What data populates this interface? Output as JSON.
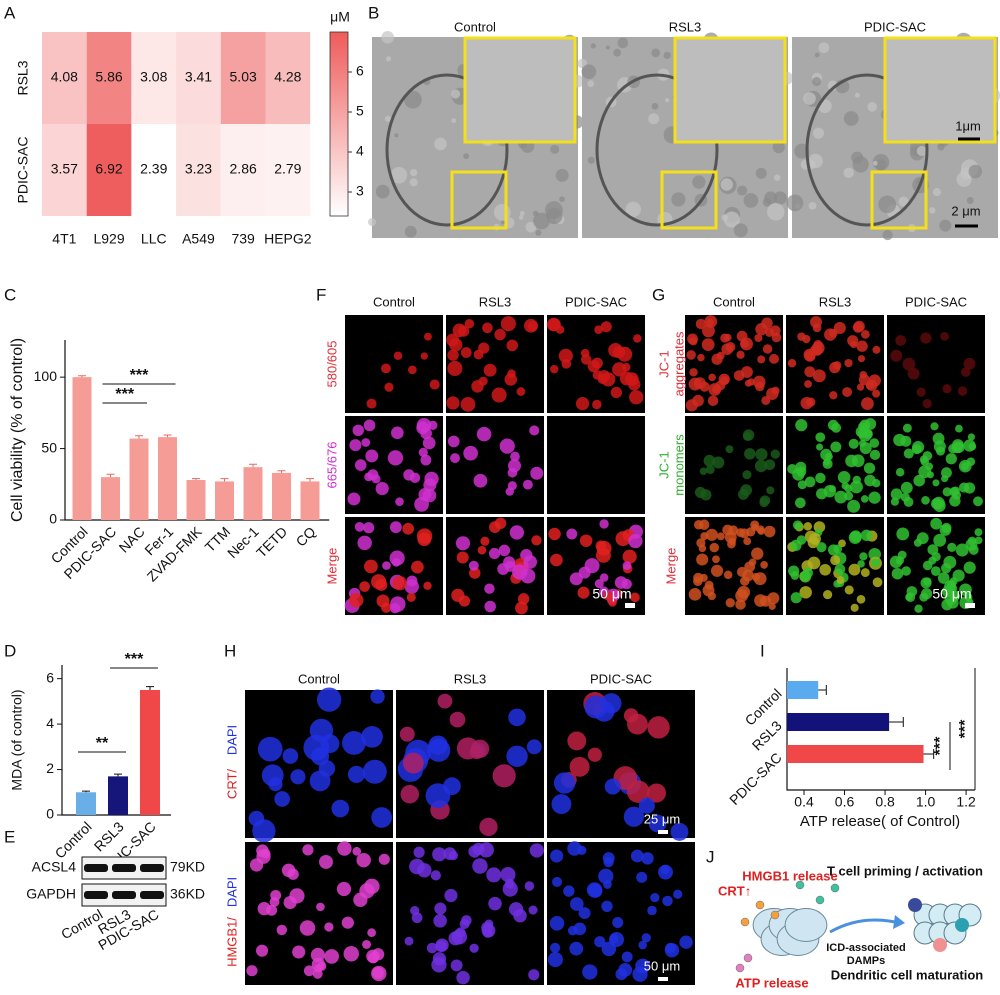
{
  "panel_labels": [
    "A",
    "B",
    "C",
    "F",
    "G",
    "D",
    "H",
    "I",
    "E",
    "J"
  ],
  "chart_data": [
    {
      "type": "heatmap",
      "x_categories": [
        "4T1",
        "L929",
        "LLC",
        "A549",
        "739",
        "HEPG2"
      ],
      "y_categories": [
        "RSL3",
        "PDIC-SAC"
      ],
      "values": [
        [
          4.08,
          5.86,
          3.08,
          3.41,
          5.03,
          4.28
        ],
        [
          3.57,
          6.92,
          2.39,
          3.23,
          2.86,
          2.79
        ]
      ],
      "colorbar_label": "μM",
      "zlim": [
        2.4,
        7
      ],
      "zticks": [
        3,
        4,
        5,
        6
      ],
      "colors": [
        "#ffffff",
        "#ef5b5b"
      ]
    },
    {
      "type": "bar",
      "ylabel": "Cell viability (% of control)",
      "categories": [
        "Control",
        "PDIC-SAC",
        "NAC",
        "Fer-1",
        "ZVAD-FMK",
        "TTM",
        "Nec-1",
        "TETD",
        "CQ"
      ],
      "values": [
        100,
        30,
        57,
        58,
        28,
        27,
        37,
        33,
        27
      ],
      "errors": [
        1,
        2,
        2,
        1.5,
        1,
        2,
        2,
        1.5,
        2
      ],
      "color": "#f59c97",
      "ylim": [
        0,
        126
      ],
      "yticks": [
        0,
        50,
        100
      ],
      "annotations": [
        "***",
        "***"
      ]
    },
    {
      "type": "bar",
      "ylabel": "MDA (of control)",
      "categories": [
        "Control",
        "RSL3",
        "PDIC-SAC"
      ],
      "values": [
        1.0,
        1.7,
        5.5
      ],
      "errors": [
        0.05,
        0.1,
        0.15
      ],
      "colors": [
        "#6aaee8",
        "#16167a",
        "#f04848"
      ],
      "ylim": [
        0,
        6.6
      ],
      "yticks": [
        0,
        2,
        4,
        6
      ],
      "annotations": [
        "**",
        "***"
      ]
    },
    {
      "type": "hbar",
      "xlabel": "ATP release( of Control)",
      "categories": [
        "Control",
        "RSL3",
        "PDIC-SAC"
      ],
      "values": [
        0.47,
        0.82,
        0.99
      ],
      "errors": [
        0.04,
        0.07,
        0.05
      ],
      "colors": [
        "#5aaaf0",
        "#12127a",
        "#f04848"
      ],
      "xlim": [
        0.316,
        1.244
      ],
      "xticks": [
        0.4,
        0.6,
        0.8,
        {
          "value": 1,
          "label": "1.0"
        },
        1.2
      ],
      "annotations": [
        "***",
        "***"
      ]
    }
  ],
  "panel_b": {
    "columns": [
      "Control",
      "RSL3",
      "PDIC-SAC"
    ],
    "scale_bars": [
      "1μm",
      "2 μm"
    ]
  },
  "panel_f": {
    "columns": [
      "Control",
      "RSL3",
      "PDIC-SAC"
    ],
    "rows": [
      "580/605",
      "665/676",
      "Merge"
    ],
    "scale_bar": "50 μm"
  },
  "panel_g": {
    "columns": [
      "Control",
      "RSL3",
      "PDIC-SAC"
    ],
    "rows": [
      [
        "JC-1",
        "aggregates"
      ],
      [
        "JC-1",
        "monomers"
      ],
      [
        "Merge"
      ]
    ],
    "scale_bar": "50 μm"
  },
  "panel_h": {
    "columns": [
      "Control",
      "RSL3",
      "PDIC-SAC"
    ],
    "rows": [
      [
        "CRT/",
        "DAPI"
      ],
      [
        "HMGB1/",
        "DAPI"
      ]
    ],
    "scale_bars": [
      "25 μm",
      "50 μm"
    ]
  },
  "panel_e": {
    "bands": [
      "ACSL4",
      "GAPDH"
    ],
    "sizes": [
      "79KD",
      "36KD"
    ],
    "lanes": [
      "Control",
      "RSL3",
      "PDIC-SAC"
    ]
  },
  "panel_j": {
    "labels": [
      "HMGB1 release",
      "T cell priming / activation",
      "CRT↑",
      "ICD-associated",
      "DAMPs",
      "Dendritic cell maturation",
      "ATP release"
    ]
  }
}
